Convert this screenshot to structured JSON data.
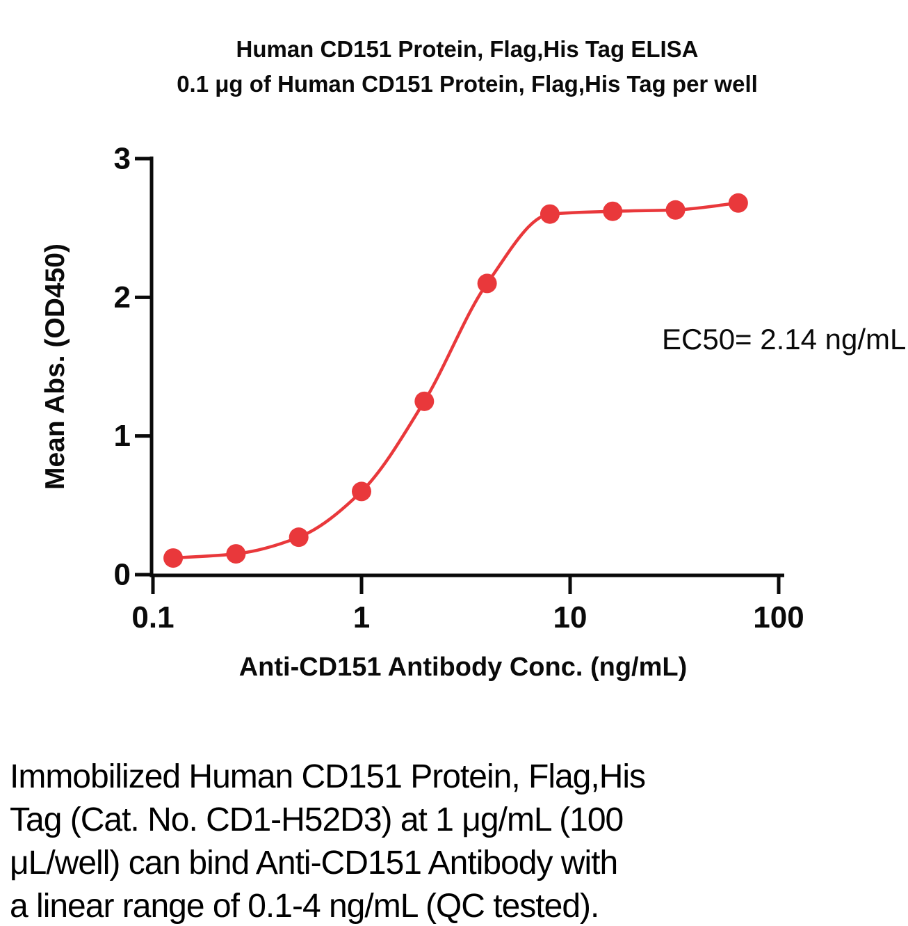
{
  "title": {
    "line1": "Human CD151 Protein, Flag,His Tag ELISA",
    "line2": "0.1 μg of Human CD151 Protein, Flag,His Tag per well"
  },
  "chart_data": {
    "type": "scatter",
    "curve": "4PL sigmoidal fit",
    "x": [
      0.125,
      0.25,
      0.5,
      1,
      2,
      4,
      8,
      16,
      32,
      64
    ],
    "y": [
      0.12,
      0.15,
      0.27,
      0.6,
      1.25,
      2.1,
      2.6,
      2.62,
      2.63,
      2.68
    ],
    "x_scale": "log10",
    "xlim": [
      0.1,
      100
    ],
    "ylim": [
      0,
      3
    ],
    "x_ticks": [
      0.1,
      1,
      10,
      100
    ],
    "x_tick_labels": [
      "0.1",
      "1",
      "10",
      "100"
    ],
    "y_ticks": [
      0,
      1,
      2,
      3
    ],
    "y_tick_labels": [
      "0",
      "1",
      "2",
      "3"
    ],
    "xlabel": "Anti-CD151 Antibody Conc. (ng/mL)",
    "ylabel": "Mean Abs. (OD450)",
    "annotation": "EC50= 2.14 ng/mL",
    "grid": false,
    "legend": "none",
    "marker_color": "#e9383b",
    "line_color": "#e9383b",
    "axis_color": "#0a0a0a"
  },
  "caption": {
    "lines": [
      "Immobilized Human CD151 Protein, Flag,His",
      "Tag (Cat. No. CD1-H52D3) at 1 μg/mL (100",
      "μL/well) can bind Anti-CD151 Antibody with",
      "a linear range of 0.1-4 ng/mL (QC tested)."
    ]
  }
}
